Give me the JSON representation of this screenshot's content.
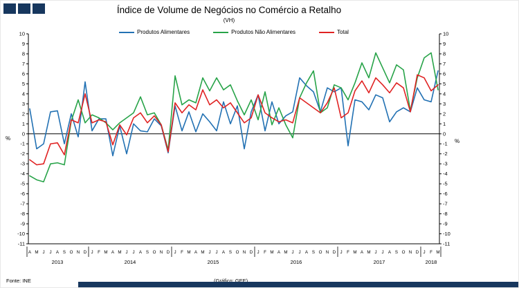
{
  "header": {
    "title": "Índice de Volume de Negócios no Comércio a Retalho",
    "subtitle": "(VH)"
  },
  "axis": {
    "percent_left": "%",
    "percent_right": "%"
  },
  "footer": {
    "source": "Fonte: INE",
    "credit": "(Gráfico: GEE)"
  },
  "chart_data": {
    "type": "line",
    "title": "Índice de Volume de Negócios no Comércio a Retalho (VH)",
    "ylabel": "%",
    "ylim": [
      -11,
      10
    ],
    "grid": false,
    "legend_position": "top",
    "years": [
      {
        "label": "2013",
        "months": [
          "A",
          "M",
          "J",
          "J",
          "A",
          "S",
          "O",
          "N",
          "D"
        ]
      },
      {
        "label": "2014",
        "months": [
          "J",
          "F",
          "M",
          "A",
          "M",
          "J",
          "J",
          "A",
          "S",
          "O",
          "N",
          "D"
        ]
      },
      {
        "label": "2015",
        "months": [
          "J",
          "F",
          "M",
          "A",
          "M",
          "J",
          "J",
          "A",
          "S",
          "O",
          "N",
          "D"
        ]
      },
      {
        "label": "2016",
        "months": [
          "J",
          "F",
          "M",
          "A",
          "M",
          "J",
          "J",
          "A",
          "S",
          "O",
          "N",
          "D"
        ]
      },
      {
        "label": "2017",
        "months": [
          "J",
          "F",
          "M",
          "A",
          "M",
          "J",
          "J",
          "A",
          "S",
          "O",
          "N",
          "D"
        ]
      },
      {
        "label": "2018",
        "months": [
          "J",
          "F",
          "M"
        ]
      }
    ],
    "series": [
      {
        "name": "Produtos Alimentares",
        "color": "#2271b3",
        "values": [
          2.5,
          -1.5,
          -1.0,
          2.2,
          2.3,
          -1.0,
          2.0,
          -0.3,
          5.2,
          0.3,
          1.5,
          1.5,
          -2.2,
          0.8,
          -2.0,
          1.0,
          0.3,
          0.2,
          1.5,
          0.8,
          -1.9,
          2.8,
          0.3,
          2.2,
          0.2,
          2.0,
          1.2,
          0.3,
          3.2,
          1.0,
          2.8,
          -1.5,
          2.2,
          3.9,
          0.3,
          3.2,
          1.0,
          1.8,
          2.2,
          5.6,
          4.8,
          4.2,
          2.2,
          4.6,
          4.2,
          4.6,
          -1.2,
          3.4,
          3.2,
          2.4,
          3.9,
          3.6,
          1.2,
          2.2,
          2.6,
          2.2,
          4.6,
          3.4,
          3.2,
          6.3
        ]
      },
      {
        "name": "Produtos Não Alimentares",
        "color": "#27a348",
        "values": [
          -4.2,
          -4.6,
          -4.8,
          -3.0,
          -2.9,
          -3.1,
          1.3,
          3.4,
          1.1,
          1.9,
          1.6,
          1.1,
          0.4,
          1.1,
          1.6,
          2.1,
          3.7,
          1.9,
          2.1,
          0.9,
          -1.6,
          5.8,
          2.9,
          3.4,
          3.1,
          5.6,
          4.3,
          5.6,
          4.4,
          4.9,
          3.3,
          1.9,
          3.4,
          1.4,
          4.2,
          0.9,
          2.6,
          0.9,
          -0.4,
          3.6,
          5.1,
          6.3,
          2.1,
          2.6,
          4.9,
          4.6,
          3.4,
          5.1,
          7.1,
          5.6,
          8.1,
          6.6,
          5.1,
          6.9,
          6.4,
          2.3,
          5.6,
          7.6,
          8.1,
          4.4
        ]
      },
      {
        "name": "Total",
        "color": "#e02222",
        "values": [
          -2.6,
          -3.1,
          -3.0,
          -1.0,
          -0.9,
          -2.1,
          1.4,
          1.1,
          4.0,
          1.1,
          1.4,
          1.2,
          -1.1,
          0.9,
          -0.1,
          1.6,
          2.1,
          1.1,
          1.8,
          0.9,
          -1.8,
          3.1,
          2.1,
          2.9,
          2.4,
          4.4,
          2.9,
          3.4,
          2.6,
          3.1,
          2.1,
          1.1,
          1.6,
          3.9,
          2.1,
          1.6,
          1.2,
          1.4,
          1.1,
          3.6,
          3.1,
          2.6,
          2.1,
          3.1,
          4.6,
          1.6,
          2.1,
          4.3,
          5.3,
          4.1,
          5.6,
          4.9,
          4.1,
          5.1,
          4.6,
          2.2,
          5.9,
          5.6,
          4.3,
          4.9
        ]
      }
    ]
  }
}
